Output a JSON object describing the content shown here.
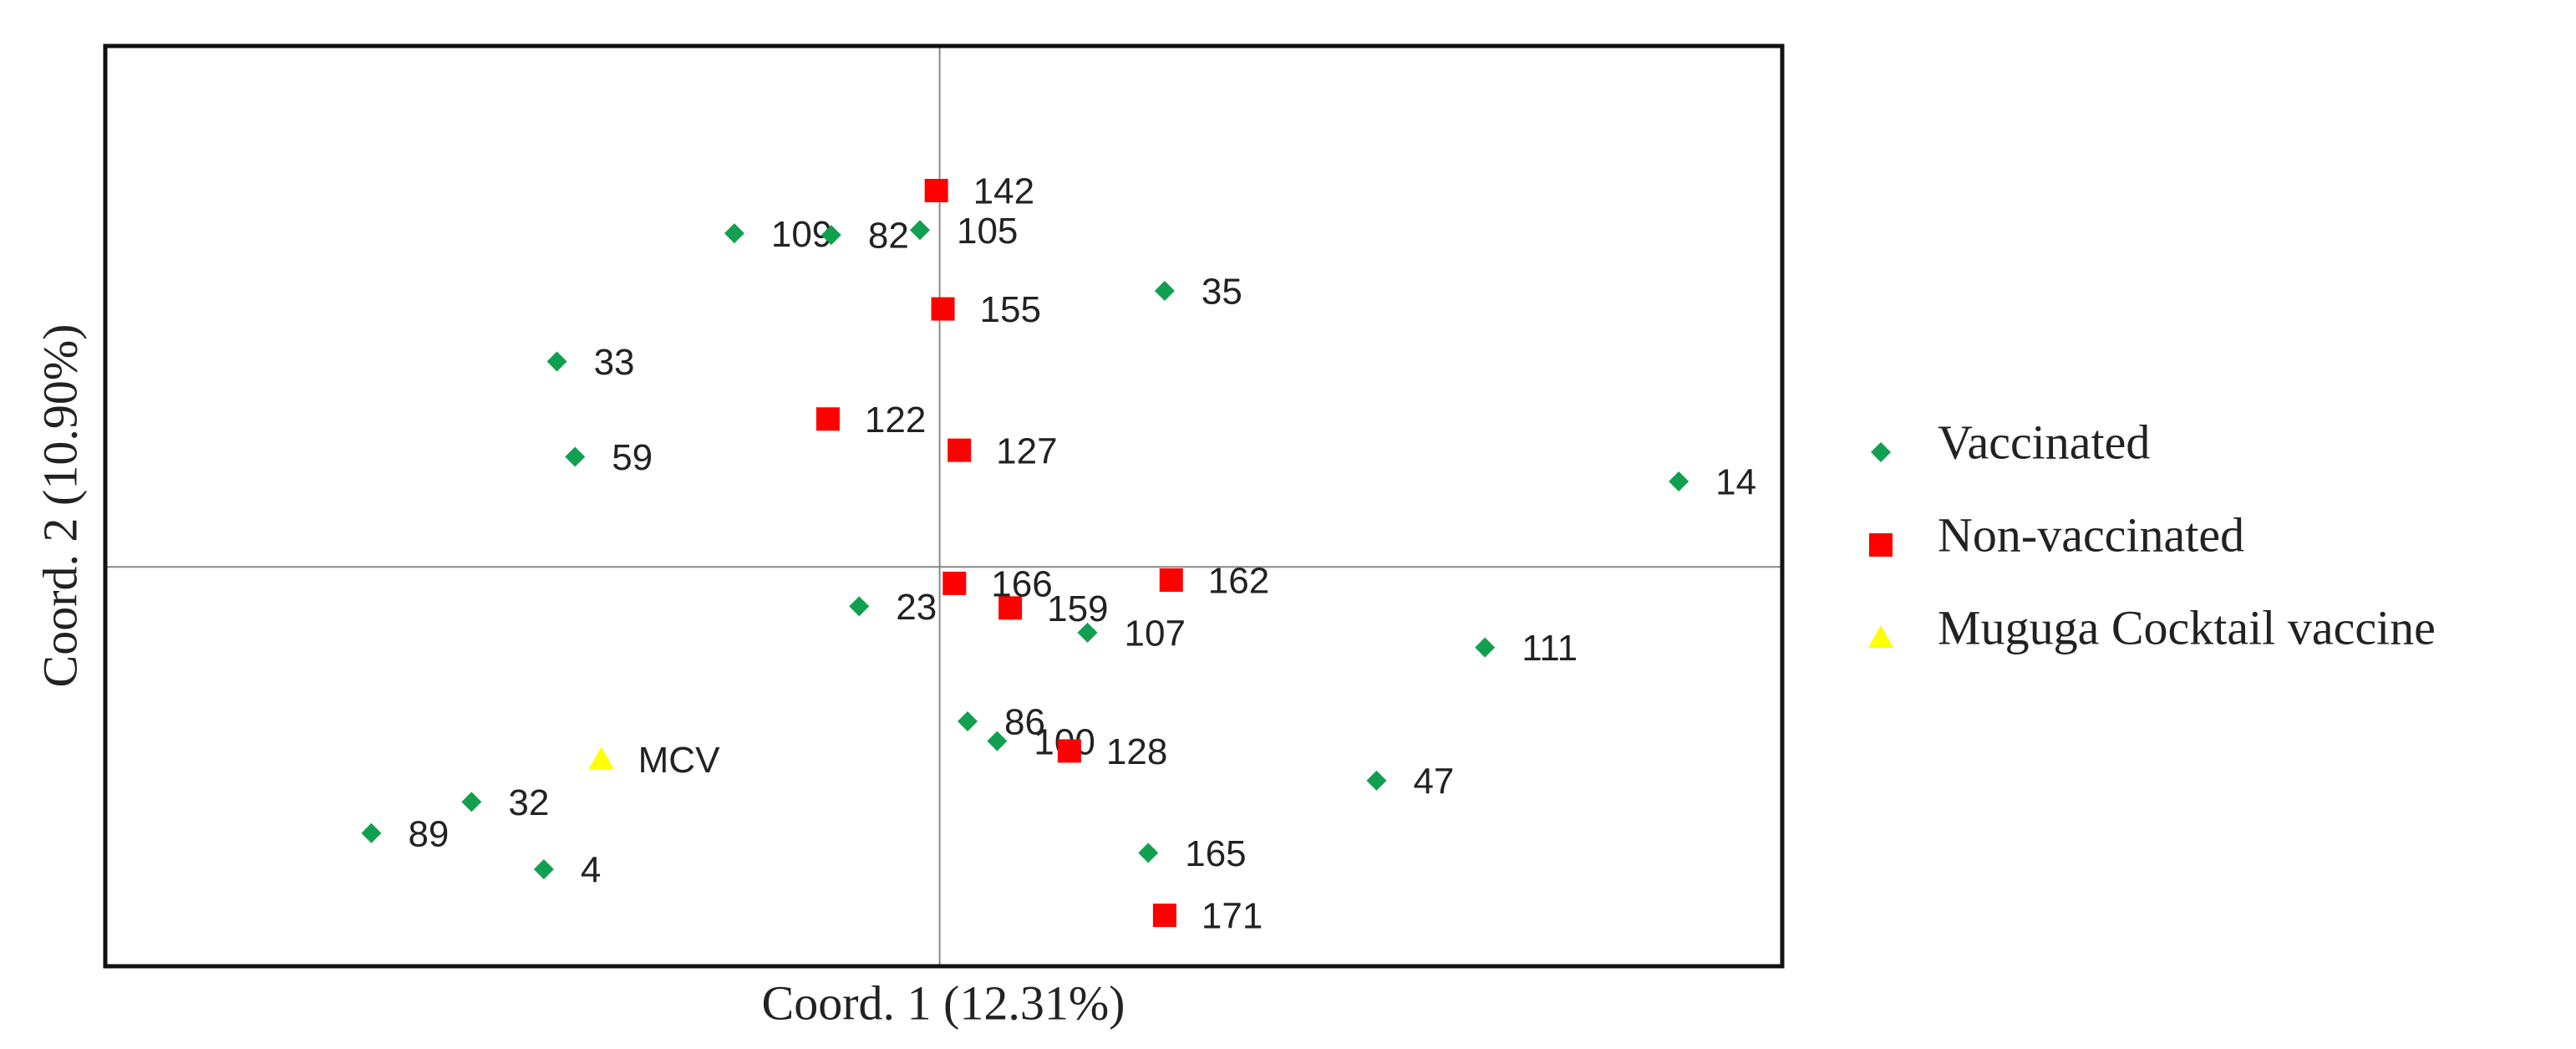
{
  "chart_data": {
    "type": "scatter",
    "x_label": "Coord. 1 (12.31%)",
    "y_label": "Coord. 2 (10.90%)",
    "xlim": [
      -5.08,
      5.13
    ],
    "ylim": [
      -2.43,
      3.17
    ],
    "zero_lines": true,
    "legend": "right",
    "series": [
      {
        "name": "Vaccinated",
        "color": "#11a04f",
        "marker": "diamond",
        "labels": [
          "109",
          "82",
          "105",
          "35",
          "33",
          "59",
          "14",
          "23",
          "107",
          "111",
          "86",
          "100",
          "47",
          "32",
          "89",
          "4",
          "165"
        ],
        "x": [
          -1.25,
          -0.66,
          -0.12,
          1.37,
          -2.33,
          -2.22,
          4.5,
          -0.49,
          0.9,
          3.32,
          0.17,
          0.35,
          2.66,
          -2.85,
          -3.46,
          -2.41,
          1.27
        ],
        "values": [
          2.03,
          2.02,
          2.05,
          1.68,
          1.25,
          0.67,
          0.52,
          -0.24,
          -0.4,
          -0.49,
          -0.94,
          -1.06,
          -1.3,
          -1.43,
          -1.62,
          -1.84,
          -1.74
        ]
      },
      {
        "name": "Non-vaccinated",
        "color": "#ff0000",
        "marker": "square",
        "labels": [
          "142",
          "155",
          "122",
          "127",
          "166",
          "159",
          "162",
          "128",
          "171"
        ],
        "x": [
          -0.02,
          0.02,
          -0.68,
          0.12,
          0.09,
          0.43,
          1.41,
          0.79,
          1.37
        ],
        "values": [
          2.29,
          1.57,
          0.9,
          0.71,
          -0.1,
          -0.25,
          -0.08,
          -1.12,
          -2.12
        ]
      },
      {
        "name": "Muguga Cocktail vaccine",
        "color": "#ffff00",
        "marker": "triangle",
        "labels": [
          "MCV"
        ],
        "x": [
          -2.06
        ],
        "values": [
          -1.17
        ]
      }
    ]
  }
}
